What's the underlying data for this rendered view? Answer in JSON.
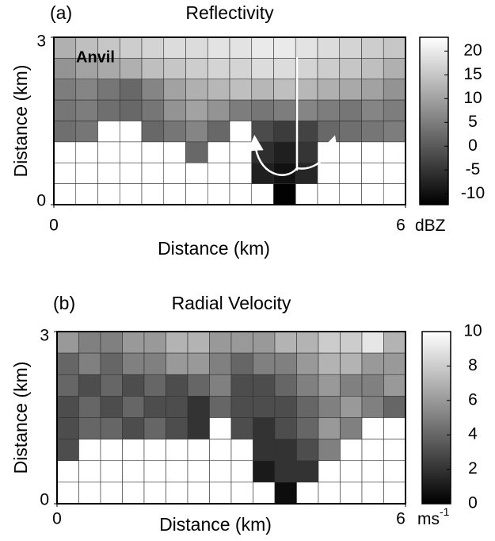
{
  "chart_data": [
    {
      "type": "heatmap",
      "label": "(a)",
      "title": "Reflectivity",
      "annotation": "Anvil",
      "xlabel": "Distance (km)",
      "ylabel": "Distance (km)",
      "xlim": [
        0,
        6
      ],
      "ylim": [
        0,
        3
      ],
      "xticks": [
        0,
        6
      ],
      "yticks": [
        0,
        3
      ],
      "values": [
        [
          12,
          14,
          15,
          16,
          17,
          18,
          18,
          19,
          19,
          20,
          20,
          19,
          18,
          17,
          16,
          15
        ],
        [
          8,
          10,
          11,
          12,
          14,
          15,
          16,
          17,
          17,
          18,
          18,
          17,
          16,
          15,
          14,
          12
        ],
        [
          5,
          6,
          4,
          2,
          6,
          10,
          12,
          13,
          14,
          13,
          14,
          13,
          12,
          11,
          10,
          8
        ],
        [
          4,
          5,
          3,
          2,
          4,
          8,
          10,
          8,
          5,
          4,
          5,
          6,
          5,
          4,
          6,
          5
        ],
        [
          3,
          4,
          null,
          null,
          2,
          4,
          6,
          2,
          null,
          -2,
          -4,
          -3,
          2,
          3,
          4,
          5
        ],
        [
          null,
          null,
          null,
          null,
          null,
          null,
          2,
          null,
          null,
          -6,
          -8,
          -5,
          null,
          null,
          null,
          null
        ],
        [
          null,
          null,
          null,
          null,
          null,
          null,
          null,
          null,
          null,
          -8,
          -10,
          -7,
          null,
          null,
          null,
          null
        ],
        [
          null,
          null,
          null,
          null,
          null,
          null,
          null,
          null,
          null,
          null,
          -12,
          null,
          null,
          null,
          null,
          null
        ]
      ],
      "colorbar": {
        "lim": [
          -12.3,
          22.9
        ],
        "ticks": [
          20,
          15,
          10,
          5,
          0,
          -5,
          -10
        ],
        "unit": "dBZ"
      }
    },
    {
      "type": "heatmap",
      "label": "(b)",
      "title": "Radial Velocity",
      "xlabel": "Distance (km)",
      "ylabel": "Distance (km)",
      "xlim": [
        0,
        6
      ],
      "ylim": [
        0,
        3
      ],
      "xticks": [
        0,
        6
      ],
      "yticks": [
        0,
        3
      ],
      "values": [
        [
          6,
          5,
          5,
          6,
          6,
          7,
          7,
          6,
          6,
          6,
          7,
          7,
          8,
          8,
          9,
          7
        ],
        [
          4,
          5,
          4,
          5,
          5,
          6,
          6,
          5,
          4,
          5,
          5,
          6,
          7,
          7,
          6,
          6
        ],
        [
          4,
          3,
          4,
          3,
          4,
          3,
          4,
          5,
          3,
          3,
          4,
          5,
          6,
          5,
          5,
          6
        ],
        [
          3,
          4,
          3,
          4,
          3,
          3,
          2,
          4,
          3,
          3,
          3,
          4,
          5,
          6,
          5,
          4
        ],
        [
          3,
          4,
          4,
          3,
          4,
          3,
          2,
          null,
          3,
          2,
          3,
          4,
          6,
          5,
          null,
          null
        ],
        [
          3,
          null,
          null,
          null,
          null,
          null,
          null,
          null,
          null,
          2,
          2,
          3,
          5,
          null,
          null,
          null
        ],
        [
          null,
          null,
          null,
          null,
          null,
          null,
          null,
          null,
          null,
          1,
          2,
          2,
          null,
          null,
          null,
          null
        ],
        [
          null,
          null,
          null,
          null,
          null,
          null,
          null,
          null,
          null,
          null,
          0.5,
          null,
          null,
          null,
          null,
          null
        ]
      ],
      "colorbar": {
        "lim": [
          0,
          10
        ],
        "ticks": [
          0,
          2,
          4,
          6,
          8,
          10
        ],
        "unit": "ms",
        "unit_superscript": "-1"
      }
    }
  ]
}
